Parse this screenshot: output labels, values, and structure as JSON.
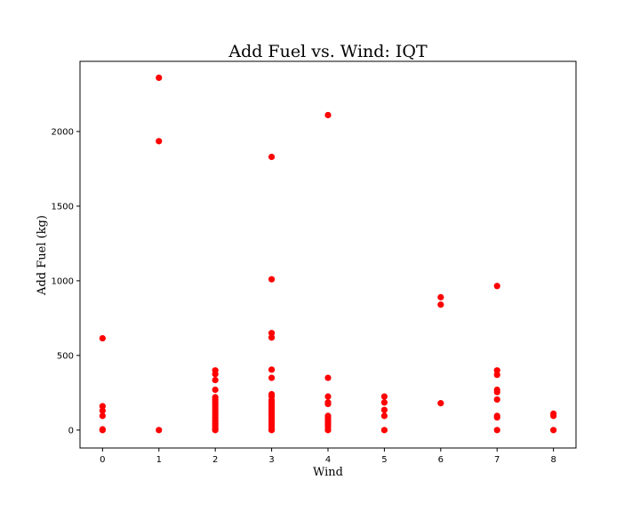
{
  "chart_data": {
    "type": "scatter",
    "title": "Add Fuel vs. Wind: IQT",
    "xlabel": "Wind",
    "ylabel": "Add Fuel (kg)",
    "xlim": [
      -0.4,
      8.4
    ],
    "ylim": [
      -120,
      2470
    ],
    "xticks": [
      0,
      1,
      2,
      3,
      4,
      5,
      6,
      7,
      8
    ],
    "yticks": [
      0,
      500,
      1000,
      1500,
      2000
    ],
    "grid": false,
    "marker_color": "#ff0000",
    "series": [
      {
        "points": [
          [
            0,
            615
          ],
          [
            0,
            160
          ],
          [
            0,
            130
          ],
          [
            0,
            95
          ],
          [
            0,
            5
          ],
          [
            0,
            0
          ],
          [
            1,
            2360
          ],
          [
            1,
            1935
          ],
          [
            1,
            0
          ],
          [
            2,
            400
          ],
          [
            2,
            375
          ],
          [
            2,
            335
          ],
          [
            2,
            270
          ],
          [
            2,
            220
          ],
          [
            2,
            205
          ],
          [
            2,
            190
          ],
          [
            2,
            175
          ],
          [
            2,
            160
          ],
          [
            2,
            145
          ],
          [
            2,
            130
          ],
          [
            2,
            115
          ],
          [
            2,
            100
          ],
          [
            2,
            85
          ],
          [
            2,
            70
          ],
          [
            2,
            55
          ],
          [
            2,
            40
          ],
          [
            2,
            25
          ],
          [
            2,
            10
          ],
          [
            2,
            0
          ],
          [
            3,
            1830
          ],
          [
            3,
            1010
          ],
          [
            3,
            650
          ],
          [
            3,
            620
          ],
          [
            3,
            405
          ],
          [
            3,
            350
          ],
          [
            3,
            240
          ],
          [
            3,
            225
          ],
          [
            3,
            200
          ],
          [
            3,
            185
          ],
          [
            3,
            170
          ],
          [
            3,
            155
          ],
          [
            3,
            140
          ],
          [
            3,
            125
          ],
          [
            3,
            110
          ],
          [
            3,
            95
          ],
          [
            3,
            80
          ],
          [
            3,
            65
          ],
          [
            3,
            50
          ],
          [
            3,
            35
          ],
          [
            3,
            20
          ],
          [
            3,
            5
          ],
          [
            3,
            0
          ],
          [
            4,
            2110
          ],
          [
            4,
            350
          ],
          [
            4,
            225
          ],
          [
            4,
            185
          ],
          [
            4,
            175
          ],
          [
            4,
            95
          ],
          [
            4,
            80
          ],
          [
            4,
            65
          ],
          [
            4,
            50
          ],
          [
            4,
            35
          ],
          [
            4,
            20
          ],
          [
            4,
            0
          ],
          [
            5,
            225
          ],
          [
            5,
            185
          ],
          [
            5,
            135
          ],
          [
            5,
            95
          ],
          [
            5,
            0
          ],
          [
            6,
            890
          ],
          [
            6,
            840
          ],
          [
            6,
            180
          ],
          [
            7,
            965
          ],
          [
            7,
            400
          ],
          [
            7,
            370
          ],
          [
            7,
            270
          ],
          [
            7,
            255
          ],
          [
            7,
            205
          ],
          [
            7,
            95
          ],
          [
            7,
            85
          ],
          [
            7,
            0
          ],
          [
            8,
            110
          ],
          [
            8,
            95
          ],
          [
            8,
            0
          ]
        ]
      }
    ]
  }
}
